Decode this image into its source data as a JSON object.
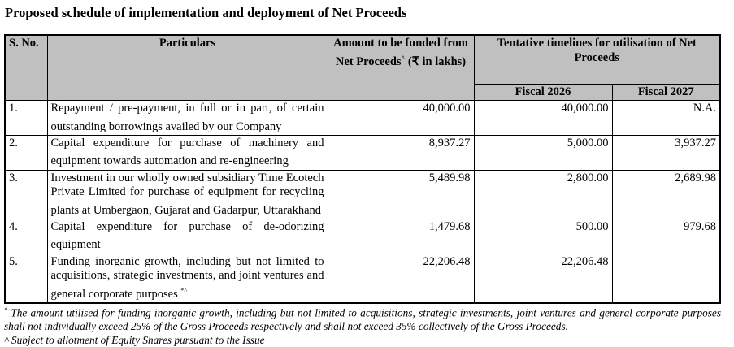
{
  "title": "Proposed schedule of implementation and deployment of Net Proceeds",
  "headers": {
    "sno": "S. No.",
    "particulars": "Particulars",
    "amount": "Amount to be funded from Net Proceeds",
    "amount_sup": "^",
    "amount_unit": " (₹ in lakhs)",
    "timelines": "Tentative timelines for utilisation of Net Proceeds",
    "fy26": "Fiscal 2026",
    "fy27": "Fiscal 2027"
  },
  "rows": [
    {
      "sno": "1.",
      "particulars": "Repayment / pre-payment, in full or in part, of certain outstanding borrowings availed by our Company",
      "sup": "",
      "amount": "40,000.00",
      "fy26": "40,000.00",
      "fy27": "N.A."
    },
    {
      "sno": "2.",
      "particulars": "Capital expenditure for purchase of machinery and equipment towards automation and re-engineering",
      "sup": "",
      "amount": "8,937.27",
      "fy26": "5,000.00",
      "fy27": "3,937.27"
    },
    {
      "sno": "3.",
      "particulars": "Investment in our wholly owned subsidiary Time Ecotech Private Limited for purchase of equipment for recycling plants at Umbergaon, Gujarat and Gadarpur, Uttarakhand",
      "sup": "",
      "amount": "5,489.98",
      "fy26": "2,800.00",
      "fy27": "2,689.98"
    },
    {
      "sno": "4.",
      "particulars": "Capital expenditure for purchase of de-odorizing equipment",
      "sup": "",
      "amount": "1,479.68",
      "fy26": "500.00",
      "fy27": "979.68"
    },
    {
      "sno": "5.",
      "particulars": "Funding inorganic growth, including but not limited to acquisitions, strategic investments, and joint ventures and general corporate purposes ",
      "sup": "*^",
      "amount": "22,206.48",
      "fy26": "22,206.48",
      "fy27": ""
    }
  ],
  "notes": {
    "n1_mark": "*",
    "n1": " The amount utilised for funding inorganic growth, including but not limited to acquisitions, strategic investments, joint ventures and general corporate purposes shall not individually exceed 25% of the Gross Proceeds respectively and shall not exceed 35% collectively of the Gross Proceeds.",
    "n2": "^ Subject to allotment of Equity Shares pursuant to the Issue"
  }
}
